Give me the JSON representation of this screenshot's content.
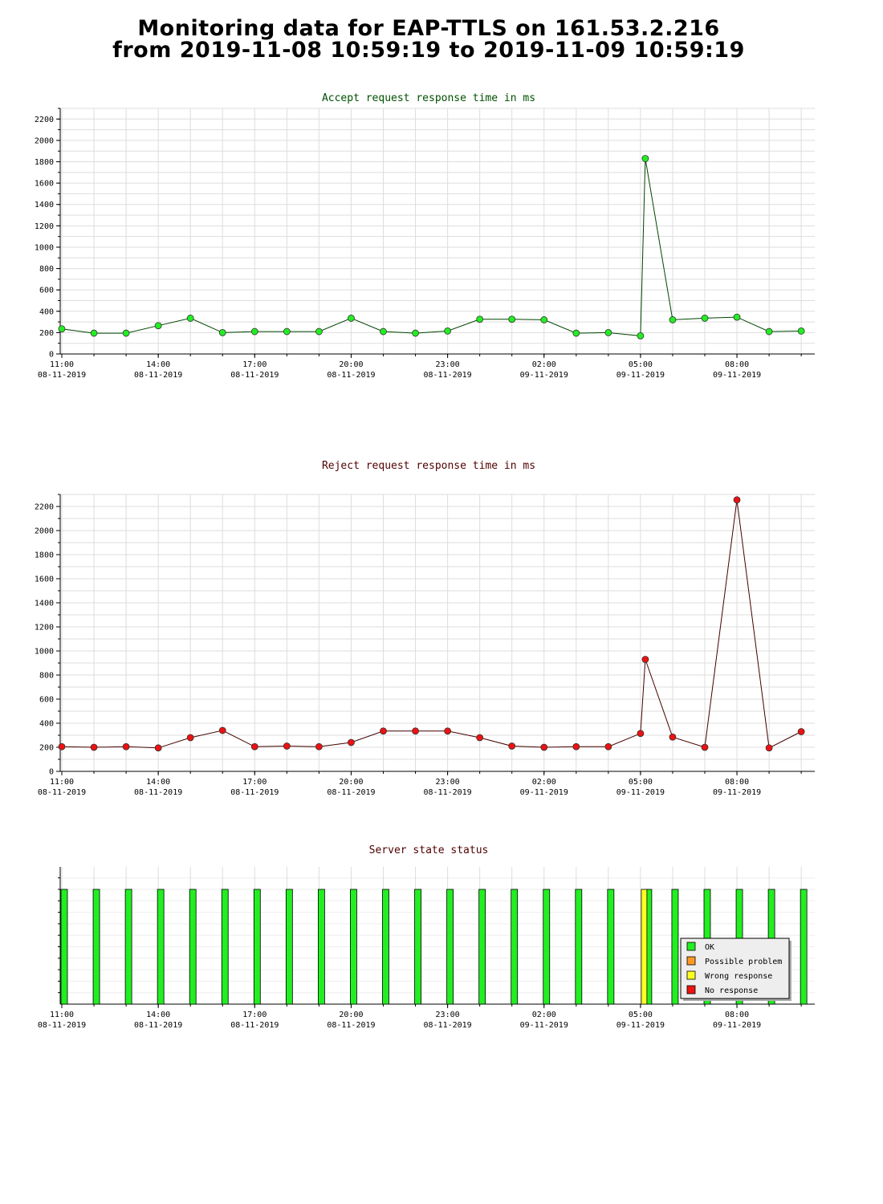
{
  "page": {
    "title_line1": "Monitoring data for EAP-TTLS on 161.53.2.216",
    "title_line2": "from 2019-11-08 10:59:19 to 2019-11-09 10:59:19"
  },
  "colors": {
    "accept_title": "#005000",
    "reject_title": "#500000",
    "accept_line": "#004400",
    "reject_line": "#440000",
    "accept_marker": "#22ee22",
    "reject_marker": "#ee1111",
    "ok": "#22ee22",
    "possible_problem": "#ff9922",
    "wrong_response": "#ffff22",
    "no_response": "#ee1111",
    "grid": "#dddddd"
  },
  "x_axis": {
    "ticks": [
      {
        "hour": 0,
        "time": "11:00",
        "date": "08-11-2019"
      },
      {
        "hour": 3,
        "time": "14:00",
        "date": "08-11-2019"
      },
      {
        "hour": 6,
        "time": "17:00",
        "date": "08-11-2019"
      },
      {
        "hour": 9,
        "time": "20:00",
        "date": "08-11-2019"
      },
      {
        "hour": 12,
        "time": "23:00",
        "date": "08-11-2019"
      },
      {
        "hour": 15,
        "time": "02:00",
        "date": "09-11-2019"
      },
      {
        "hour": 18,
        "time": "05:00",
        "date": "09-11-2019"
      },
      {
        "hour": 21,
        "time": "08:00",
        "date": "09-11-2019"
      }
    ]
  },
  "chart_data": [
    {
      "type": "line",
      "title": "Accept request response time in ms",
      "ylim": [
        0,
        2300
      ],
      "yticks": [
        0,
        200,
        400,
        600,
        800,
        1000,
        1200,
        1400,
        1600,
        1800,
        2000,
        2200
      ],
      "grid": true,
      "x": [
        0,
        1,
        2,
        3,
        4,
        5,
        6,
        7,
        8,
        9,
        10,
        11,
        12,
        13,
        14,
        15,
        16,
        17,
        18,
        18.15,
        19,
        20,
        21,
        22,
        23
      ],
      "values": [
        235,
        195,
        195,
        265,
        335,
        200,
        210,
        210,
        210,
        335,
        210,
        195,
        215,
        325,
        325,
        320,
        195,
        200,
        170,
        1830,
        320,
        335,
        345,
        210,
        215
      ]
    },
    {
      "type": "line",
      "title": "Reject request response time in ms",
      "ylim": [
        0,
        2300
      ],
      "yticks": [
        0,
        200,
        400,
        600,
        800,
        1000,
        1200,
        1400,
        1600,
        1800,
        2000,
        2200
      ],
      "grid": true,
      "x": [
        0,
        1,
        2,
        3,
        4,
        5,
        6,
        7,
        8,
        9,
        10,
        11,
        12,
        13,
        14,
        15,
        16,
        17,
        18,
        18.15,
        19,
        20,
        21,
        22,
        23
      ],
      "values": [
        205,
        200,
        205,
        195,
        280,
        340,
        205,
        210,
        205,
        240,
        335,
        335,
        335,
        280,
        210,
        200,
        205,
        205,
        315,
        930,
        285,
        200,
        2255,
        195,
        330
      ]
    },
    {
      "type": "bar",
      "title": "Server state status",
      "grid": true,
      "x": [
        0,
        1,
        2,
        3,
        4,
        5,
        6,
        7,
        8,
        9,
        10,
        11,
        12,
        13,
        14,
        15,
        16,
        17,
        18,
        18.15,
        19,
        20,
        21,
        22,
        23
      ],
      "states": [
        "OK",
        "OK",
        "OK",
        "OK",
        "OK",
        "OK",
        "OK",
        "OK",
        "OK",
        "OK",
        "OK",
        "OK",
        "OK",
        "OK",
        "OK",
        "OK",
        "OK",
        "OK",
        "Wrong response",
        "OK",
        "OK",
        "OK",
        "OK",
        "OK",
        "OK"
      ],
      "legend": [
        "OK",
        "Possible problem",
        "Wrong response",
        "No response"
      ],
      "legend_position": "bottom-right"
    }
  ]
}
